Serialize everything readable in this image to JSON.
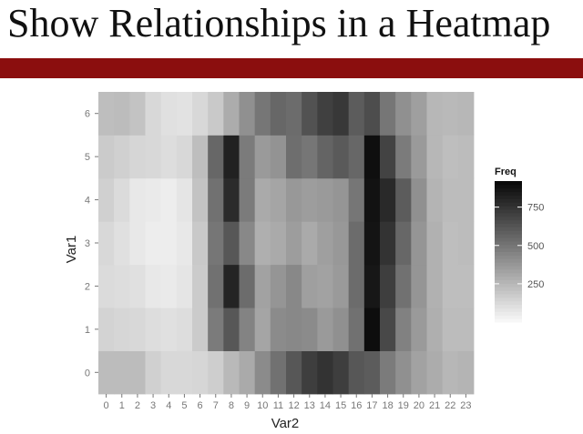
{
  "slide": {
    "title": "Show Relationships in a Heatmap",
    "accent_color": "#8b0e0e"
  },
  "chart_data": {
    "type": "heatmap",
    "title": "",
    "xlabel": "Var2",
    "ylabel": "Var1",
    "x": [
      0,
      1,
      2,
      3,
      4,
      5,
      6,
      7,
      8,
      9,
      10,
      11,
      12,
      13,
      14,
      15,
      16,
      17,
      18,
      19,
      20,
      21,
      22,
      23
    ],
    "y": [
      0,
      1,
      2,
      3,
      4,
      5,
      6
    ],
    "values": [
      [
        230,
        230,
        230,
        150,
        120,
        120,
        130,
        160,
        240,
        300,
        420,
        520,
        620,
        720,
        760,
        720,
        620,
        600,
        480,
        400,
        330,
        290,
        250,
        260
      ],
      [
        140,
        130,
        120,
        100,
        90,
        100,
        170,
        480,
        620,
        450,
        320,
        420,
        430,
        420,
        360,
        400,
        520,
        910,
        680,
        460,
        360,
        280,
        230,
        230
      ],
      [
        110,
        100,
        90,
        60,
        50,
        70,
        170,
        520,
        820,
        540,
        330,
        380,
        430,
        340,
        330,
        360,
        540,
        870,
        720,
        520,
        380,
        270,
        220,
        220
      ],
      [
        120,
        90,
        60,
        40,
        40,
        60,
        180,
        500,
        620,
        430,
        280,
        300,
        350,
        300,
        340,
        370,
        540,
        880,
        760,
        560,
        380,
        270,
        220,
        230
      ],
      [
        150,
        110,
        60,
        50,
        40,
        70,
        200,
        520,
        790,
        480,
        300,
        320,
        370,
        350,
        360,
        380,
        500,
        890,
        800,
        600,
        400,
        260,
        230,
        230
      ],
      [
        170,
        150,
        130,
        120,
        100,
        120,
        220,
        560,
        830,
        480,
        360,
        390,
        530,
        500,
        570,
        610,
        560,
        900,
        700,
        480,
        360,
        250,
        220,
        230
      ],
      [
        220,
        230,
        200,
        120,
        90,
        80,
        120,
        180,
        290,
        400,
        500,
        560,
        540,
        640,
        710,
        740,
        600,
        660,
        500,
        400,
        340,
        250,
        240,
        250
      ]
    ],
    "zlim": [
      0,
      920
    ],
    "colorscale": [
      "#f7f7f7",
      "#0a0a0a"
    ],
    "legend": {
      "title": "Freq",
      "ticks": [
        250,
        500,
        750
      ],
      "placement": "right"
    },
    "grid": true,
    "panel_background": "#ebebeb"
  }
}
